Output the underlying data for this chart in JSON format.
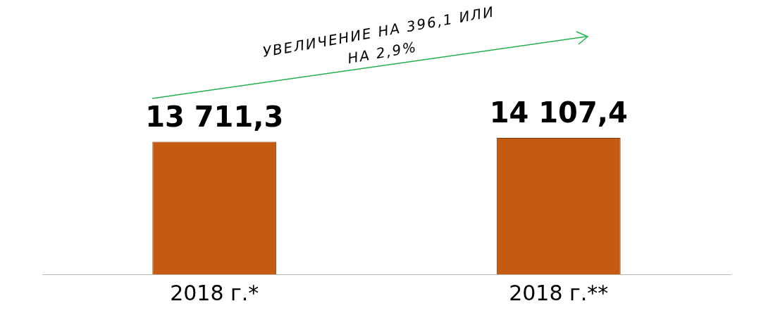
{
  "chart_data": {
    "type": "bar",
    "categories": [
      "2018 г.*",
      "2018 г.**"
    ],
    "values": [
      13711.3,
      14107.4
    ],
    "value_labels": [
      "13 711,3",
      "14 107,4"
    ],
    "color": "#c55a11",
    "grid": false,
    "legend": false,
    "annotations": [
      "УВЕЛИЧЕНИЕ НА 396,1 ИЛИ НА 2,9%"
    ]
  }
}
